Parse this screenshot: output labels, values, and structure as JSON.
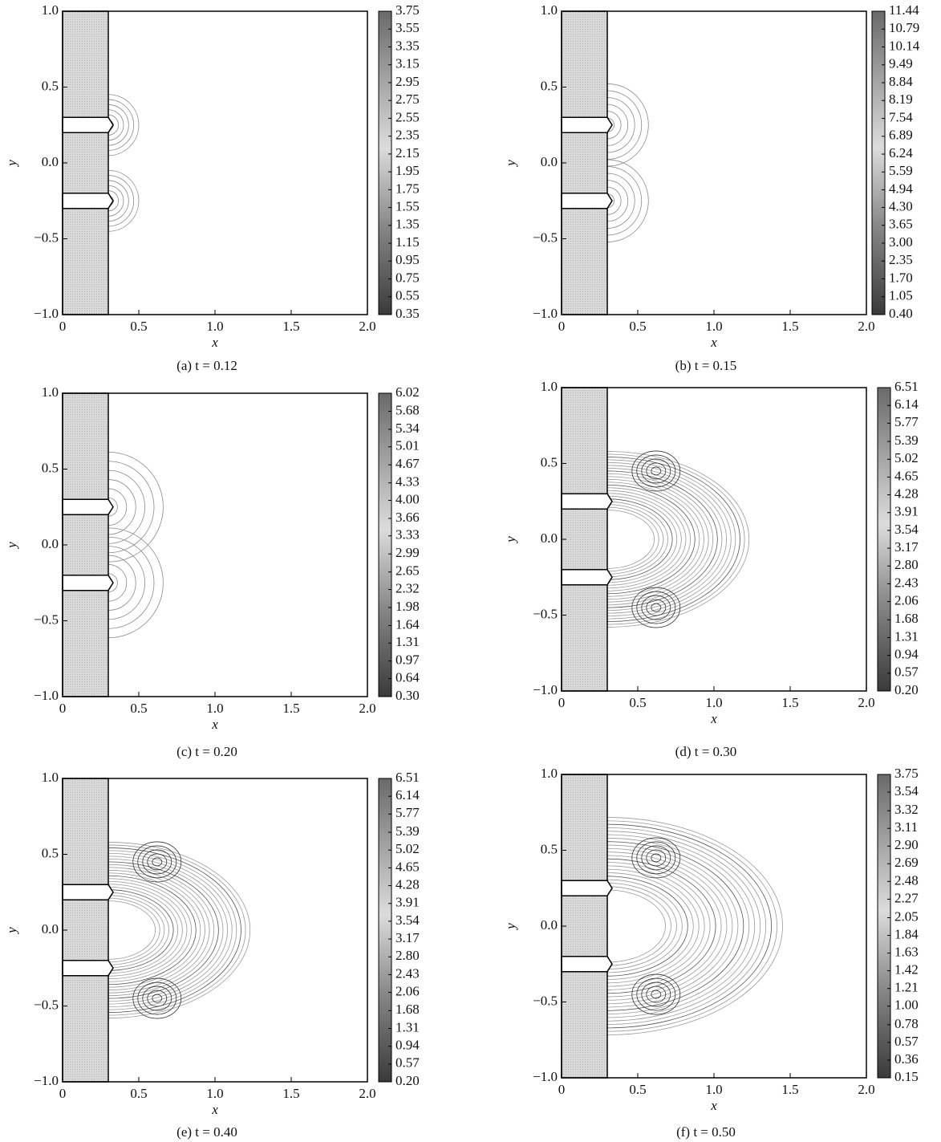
{
  "chart_data": [
    {
      "type": "contour",
      "caption": "(a)  t = 0.12",
      "xlabel": "x",
      "ylabel": "y",
      "xlim": [
        0,
        2
      ],
      "ylim": [
        -1,
        1
      ],
      "xticks": [
        0,
        0.5,
        {
          "value": 1,
          "label": "1.0"
        },
        1.5,
        {
          "value": 2,
          "label": "2.0"
        }
      ],
      "yticks": [
        {
          "value": -1,
          "label": "−1.0"
        },
        {
          "value": -0.5,
          "label": "−0.5"
        },
        {
          "value": 0,
          "label": "0.0"
        },
        0.5,
        {
          "value": 1,
          "label": "1.0"
        }
      ],
      "levels": [
        3.75,
        3.55,
        3.35,
        3.15,
        2.95,
        2.75,
        2.55,
        2.35,
        2.15,
        1.95,
        1.75,
        1.55,
        1.35,
        1.15,
        0.95,
        0.75,
        0.55,
        0.35
      ]
    },
    {
      "type": "contour",
      "caption": "(b)  t = 0.15",
      "xlabel": "x",
      "ylabel": "y",
      "xlim": [
        0,
        2
      ],
      "ylim": [
        -1,
        1
      ],
      "xticks": [
        0,
        0.5,
        {
          "value": 1,
          "label": "1.0"
        },
        1.5,
        {
          "value": 2,
          "label": "2.0"
        }
      ],
      "yticks": [
        {
          "value": -1,
          "label": "−1.0"
        },
        {
          "value": -0.5,
          "label": "−0.5"
        },
        {
          "value": 0,
          "label": "0.0"
        },
        0.5,
        {
          "value": 1,
          "label": "1.0"
        }
      ],
      "levels": [
        11.44,
        10.79,
        10.14,
        9.49,
        8.84,
        8.19,
        7.54,
        6.89,
        6.24,
        5.59,
        4.94,
        {
          "value": 4.3,
          "label": "4.30"
        },
        3.65,
        {
          "value": 3,
          "label": "3.00"
        },
        2.35,
        {
          "value": 1.7,
          "label": "1.70"
        },
        1.05,
        {
          "value": 0.4,
          "label": "0.40"
        }
      ]
    },
    {
      "type": "contour",
      "caption": "(c)  t = 0.20",
      "xlabel": "x",
      "ylabel": "y",
      "xlim": [
        0,
        2
      ],
      "ylim": [
        -1,
        1
      ],
      "xticks": [
        0,
        0.5,
        {
          "value": 1,
          "label": "1.0"
        },
        1.5,
        {
          "value": 2,
          "label": "2.0"
        }
      ],
      "yticks": [
        {
          "value": -1,
          "label": "−1.0"
        },
        {
          "value": -0.5,
          "label": "−0.5"
        },
        {
          "value": 0,
          "label": "0.0"
        },
        0.5,
        {
          "value": 1,
          "label": "1.0"
        }
      ],
      "levels": [
        6.02,
        5.68,
        5.34,
        5.01,
        4.67,
        4.33,
        {
          "value": 4,
          "label": "4.00"
        },
        3.66,
        3.33,
        2.99,
        2.65,
        2.32,
        1.98,
        1.64,
        1.31,
        0.97,
        0.64,
        {
          "value": 0.3,
          "label": "0.30"
        }
      ]
    },
    {
      "type": "contour",
      "caption": "(d)  t = 0.30",
      "xlabel": "x",
      "ylabel": "y",
      "xlim": [
        0,
        2
      ],
      "ylim": [
        -1,
        1
      ],
      "xticks": [
        0,
        0.5,
        {
          "value": 1,
          "label": "1.0"
        },
        1.5,
        {
          "value": 2,
          "label": "2.0"
        }
      ],
      "yticks": [
        {
          "value": -1,
          "label": "−1.0"
        },
        {
          "value": -0.5,
          "label": "−0.5"
        },
        {
          "value": 0,
          "label": "0.0"
        },
        0.5,
        {
          "value": 1,
          "label": "1.0"
        }
      ],
      "levels": [
        6.51,
        6.14,
        5.77,
        5.39,
        5.02,
        4.65,
        4.28,
        3.91,
        3.54,
        3.17,
        {
          "value": 2.8,
          "label": "2.80"
        },
        2.43,
        2.06,
        1.68,
        1.31,
        0.94,
        0.57,
        {
          "value": 0.2,
          "label": "0.20"
        }
      ]
    },
    {
      "type": "contour",
      "caption": "(e)  t = 0.40",
      "xlabel": "x",
      "ylabel": "y",
      "xlim": [
        0,
        2
      ],
      "ylim": [
        -1,
        1
      ],
      "xticks": [
        0,
        0.5,
        {
          "value": 1,
          "label": "1.0"
        },
        1.5,
        {
          "value": 2,
          "label": "2.0"
        }
      ],
      "yticks": [
        {
          "value": -1,
          "label": "−1.0"
        },
        {
          "value": -0.5,
          "label": "−0.5"
        },
        {
          "value": 0,
          "label": "0.0"
        },
        0.5,
        {
          "value": 1,
          "label": "1.0"
        }
      ],
      "levels": [
        6.51,
        6.14,
        5.77,
        5.39,
        5.02,
        4.65,
        4.28,
        3.91,
        3.54,
        3.17,
        {
          "value": 2.8,
          "label": "2.80"
        },
        2.43,
        2.06,
        1.68,
        1.31,
        0.94,
        0.57,
        {
          "value": 0.2,
          "label": "0.20"
        }
      ]
    },
    {
      "type": "contour",
      "caption": "(f)  t = 0.50",
      "xlabel": "x",
      "ylabel": "y",
      "xlim": [
        0,
        2
      ],
      "ylim": [
        -1,
        1
      ],
      "xticks": [
        0,
        0.5,
        {
          "value": 1,
          "label": "1.0"
        },
        1.5,
        {
          "value": 2,
          "label": "2.0"
        }
      ],
      "yticks": [
        {
          "value": -1,
          "label": "−1.0"
        },
        {
          "value": -0.5,
          "label": "−0.5"
        },
        {
          "value": 0,
          "label": "0.0"
        },
        0.5,
        {
          "value": 1,
          "label": "1.0"
        }
      ],
      "levels": [
        3.75,
        3.54,
        3.32,
        3.11,
        {
          "value": 2.9,
          "label": "2.90"
        },
        2.69,
        2.48,
        2.27,
        2.05,
        1.84,
        1.63,
        1.42,
        1.21,
        {
          "value": 1,
          "label": "1.00"
        },
        0.78,
        0.57,
        0.36,
        0.15
      ]
    }
  ]
}
